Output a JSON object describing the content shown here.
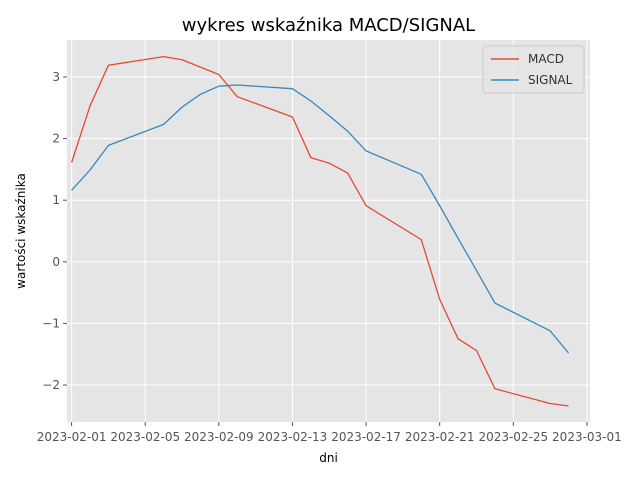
{
  "chart_data": {
    "type": "line",
    "title": "wykres wskaźnika MACD/SIGNAL",
    "xlabel": "dni",
    "ylabel": "wartości wskaźnika",
    "x_tick_labels": [
      "2023-02-01",
      "2023-02-05",
      "2023-02-09",
      "2023-02-13",
      "2023-02-17",
      "2023-02-21",
      "2023-02-25",
      "2023-03-01"
    ],
    "y_tick_labels": [
      "−2",
      "−1",
      "0",
      "1",
      "2",
      "3"
    ],
    "y_ticks": [
      -2,
      -1,
      0,
      1,
      2,
      3
    ],
    "xlim": [
      "2023-01-31T18:00",
      "2023-03-01T04:00"
    ],
    "ylim": [
      -2.6,
      3.6
    ],
    "grid": true,
    "legend_position": "top-right",
    "series": [
      {
        "name": "MACD",
        "color": "#E24A33",
        "points": [
          [
            "2023-02-01",
            1.61
          ],
          [
            "2023-02-02",
            2.53
          ],
          [
            "2023-02-03",
            3.19
          ],
          [
            "2023-02-06",
            3.33
          ],
          [
            "2023-02-07",
            3.28
          ],
          [
            "2023-02-08",
            3.16
          ],
          [
            "2023-02-09",
            3.04
          ],
          [
            "2023-02-10",
            2.68
          ],
          [
            "2023-02-13",
            2.35
          ],
          [
            "2023-02-14",
            1.69
          ],
          [
            "2023-02-15",
            1.6
          ],
          [
            "2023-02-16",
            1.44
          ],
          [
            "2023-02-17",
            0.91
          ],
          [
            "2023-02-20",
            0.36
          ],
          [
            "2023-02-21",
            -0.61
          ],
          [
            "2023-02-22",
            -1.25
          ],
          [
            "2023-02-23",
            -1.44
          ],
          [
            "2023-02-24",
            -2.06
          ],
          [
            "2023-02-27",
            -2.3
          ],
          [
            "2023-02-28",
            -2.34
          ]
        ]
      },
      {
        "name": "SIGNAL",
        "color": "#348ABD",
        "points": [
          [
            "2023-02-01",
            1.16
          ],
          [
            "2023-02-02",
            1.49
          ],
          [
            "2023-02-03",
            1.89
          ],
          [
            "2023-02-06",
            2.23
          ],
          [
            "2023-02-07",
            2.51
          ],
          [
            "2023-02-08",
            2.72
          ],
          [
            "2023-02-09",
            2.85
          ],
          [
            "2023-02-10",
            2.87
          ],
          [
            "2023-02-13",
            2.81
          ],
          [
            "2023-02-14",
            2.61
          ],
          [
            "2023-02-15",
            2.37
          ],
          [
            "2023-02-16",
            2.12
          ],
          [
            "2023-02-17",
            1.8
          ],
          [
            "2023-02-20",
            1.42
          ],
          [
            "2023-02-21",
            0.91
          ],
          [
            "2023-02-22",
            0.38
          ],
          [
            "2023-02-23",
            -0.14
          ],
          [
            "2023-02-24",
            -0.67
          ],
          [
            "2023-02-27",
            -1.12
          ],
          [
            "2023-02-28",
            -1.48
          ]
        ]
      }
    ]
  }
}
